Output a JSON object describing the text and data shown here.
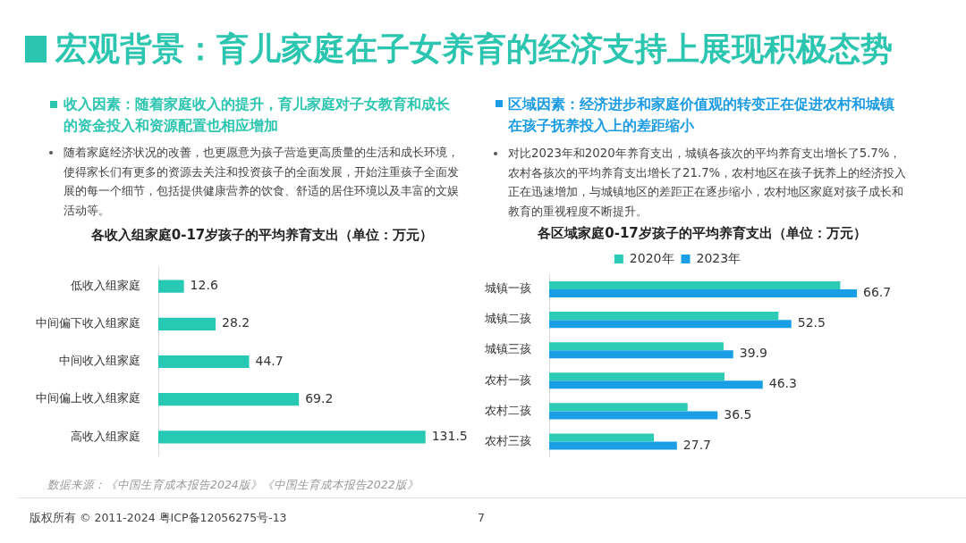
{
  "chart_data": [
    {
      "type": "other",
      "title": "宏观背景：育儿家庭在子女养育的经济支持上展现积极态势",
      "annotations": [
        "版权所有 © 2011-2024 粤ICP备12056275号-13",
        "7"
      ]
    },
    {
      "type": "bar",
      "orientation": "horizontal",
      "title": "各收入组家庭0-17岁孩子的平均养育支出（单位：万元）",
      "subtitle": "收入因素：随着家庭收入的提升，育儿家庭对子女教育和成长的资金投入和资源配置也相应增加",
      "annotations": [
        "随着家庭经济状况的改善，也更愿意为孩子营造更高质量的生活和成长环境，使得家长们有更多的资源去关注和投资孩子的全面发展，开始注重孩子全面发展的每一个细节，包括提供健康营养的饮食、舒适的居住环境以及丰富的文娱活动等。",
        "数据来源：《中国生育成本报告2024版》《中国生育成本报告2022版》"
      ],
      "categories": [
        "低收入组家庭",
        "中间偏下收入组家庭",
        "中间收入组家庭",
        "中间偏上收入组家庭",
        "高收入组家庭"
      ],
      "values": [
        12.6,
        28.2,
        44.7,
        69.2,
        131.5
      ],
      "color": "#27c8b4",
      "data_labels": true
    },
    {
      "type": "bar",
      "orientation": "horizontal",
      "title": "各区域家庭0-17岁孩子的平均养育支出（单位：万元）",
      "subtitle": "区域因素：经济进步和家庭价值观的转变正在促进农村和城镇在孩子抚养投入上的差距缩小",
      "annotations": [
        "对比2023年和2020年养育支出，城镇各孩次的平均养育支出增长了5.7%，农村各孩次的平均养育支出增长了21.7%，农村地区在孩子抚养上的经济投入正在迅速增加，与城镇地区的差距正在逐步缩小，农村地区家庭对孩子成长和教育的重视程度不断提升。"
      ],
      "categories": [
        "城镇一孩",
        "城镇二孩",
        "城镇三孩",
        "农村一孩",
        "农村二孩",
        "农村三孩"
      ],
      "series": [
        {
          "name": "2020年",
          "color": "#2ccbb6",
          "values": [
            63.1,
            49.7,
            37.8,
            38,
            30,
            22.7
          ]
        },
        {
          "name": "2023年",
          "color": "#1a9ee6",
          "values": [
            66.7,
            52.5,
            39.9,
            46.3,
            36.5,
            27.7
          ],
          "value_labels": [
            "66.7",
            "52.5",
            "39.9",
            "46.3",
            "36.5",
            "27.7"
          ]
        }
      ],
      "legend": "top"
    }
  ]
}
